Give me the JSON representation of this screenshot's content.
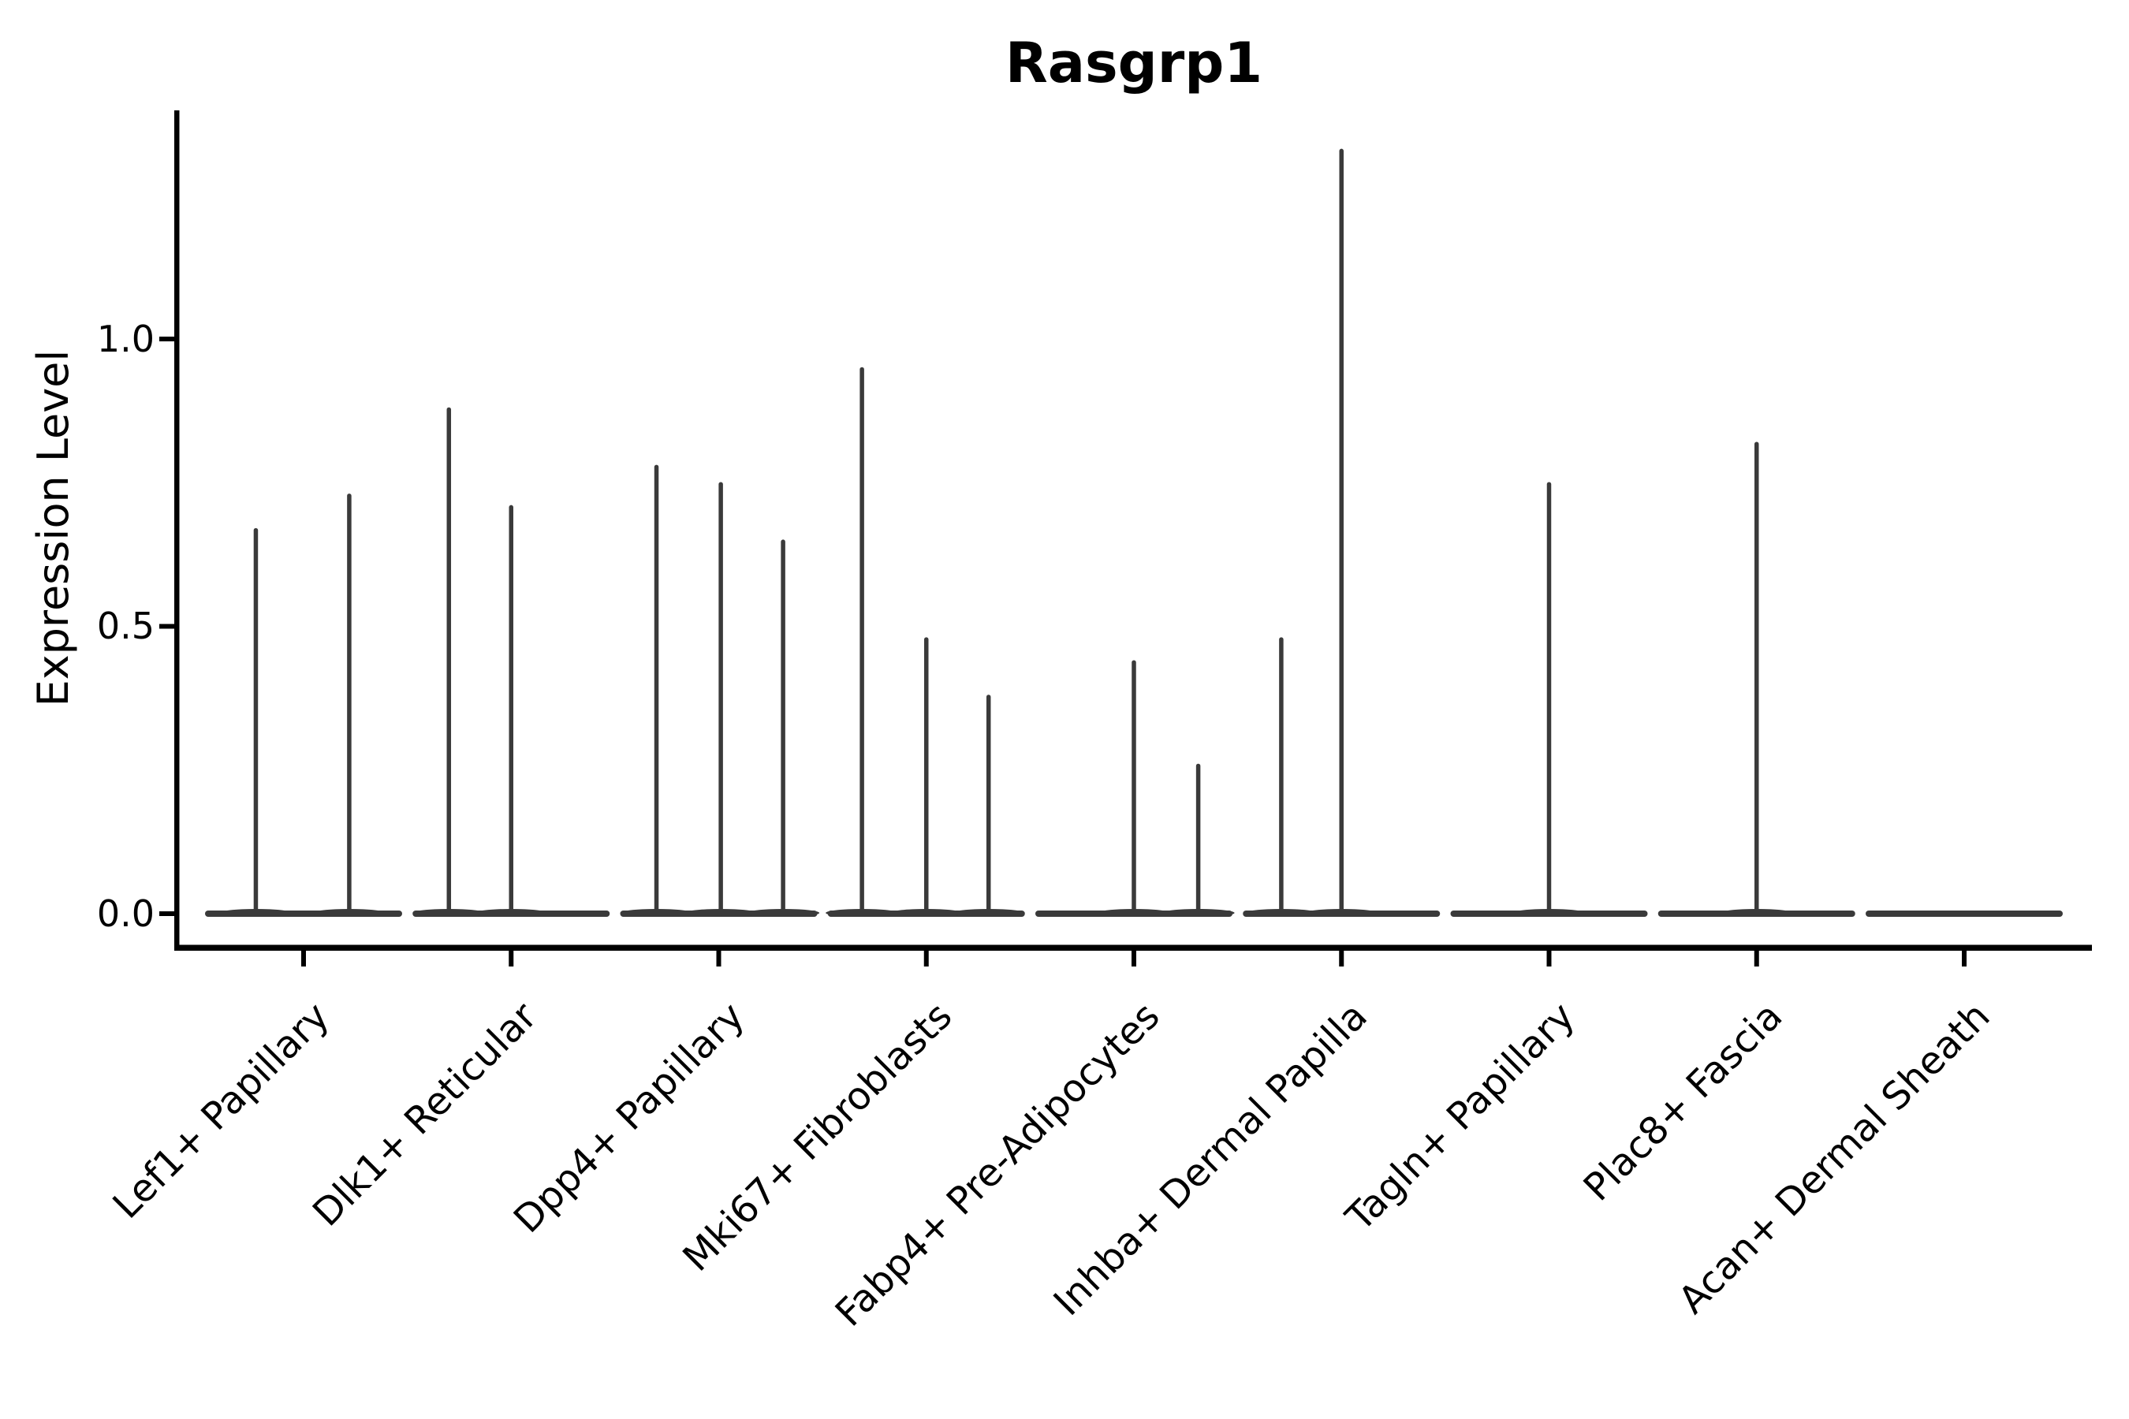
{
  "chart_data": {
    "type": "violin",
    "title": "Rasgrp1",
    "ylabel": "Expression Level",
    "categories": [
      "Lef1+ Papillary",
      "Dlk1+ Reticular",
      "Dpp4+ Papillary",
      "Mki67+ Fibroblasts",
      "Fabp4+ Pre-Adipocytes",
      "Inhba+ Dermal Papilla",
      "Tagln+ Papillary",
      "Plac8+ Fascia",
      "Acan+ Dermal Sheath"
    ],
    "series": [
      {
        "category": "Lef1+ Papillary",
        "spikes": [
          {
            "offset": -0.23,
            "value": 0.67
          },
          {
            "offset": 0.22,
            "value": 0.73
          }
        ]
      },
      {
        "category": "Dlk1+ Reticular",
        "spikes": [
          {
            "offset": -0.3,
            "value": 0.88
          },
          {
            "offset": 0.0,
            "value": 0.71
          }
        ]
      },
      {
        "category": "Dpp4+ Papillary",
        "spikes": [
          {
            "offset": -0.3,
            "value": 0.78
          },
          {
            "offset": 0.01,
            "value": 0.75
          },
          {
            "offset": 0.31,
            "value": 0.65
          }
        ]
      },
      {
        "category": "Mki67+ Fibroblasts",
        "spikes": [
          {
            "offset": -0.31,
            "value": 0.95
          },
          {
            "offset": 0.0,
            "value": 0.48
          },
          {
            "offset": 0.3,
            "value": 0.38
          }
        ]
      },
      {
        "category": "Fabp4+ Pre-Adipocytes",
        "spikes": [
          {
            "offset": 0.0,
            "value": 0.44
          },
          {
            "offset": 0.31,
            "value": 0.26
          }
        ]
      },
      {
        "category": "Inhba+ Dermal Papilla",
        "spikes": [
          {
            "offset": -0.29,
            "value": 0.48
          },
          {
            "offset": 0.0,
            "value": 1.33
          }
        ]
      },
      {
        "category": "Tagln+ Papillary",
        "spikes": [
          {
            "offset": 0.0,
            "value": 0.75
          }
        ]
      },
      {
        "category": "Plac8+ Fascia",
        "spikes": [
          {
            "offset": 0.0,
            "value": 0.82
          }
        ]
      },
      {
        "category": "Acan+ Dermal Sheath",
        "spikes": []
      }
    ],
    "yticks": [
      {
        "value": 0.0,
        "label": "0.0"
      },
      {
        "value": 0.5,
        "label": "0.5"
      },
      {
        "value": 1.0,
        "label": "1.0"
      }
    ],
    "ylim": [
      -0.06,
      1.4
    ],
    "violin_width": 0.9,
    "grid": false,
    "legend": "none",
    "colors": {
      "violin": "#3a3a3a",
      "axis": "#000000",
      "text": "#000000",
      "background": "#ffffff"
    }
  }
}
